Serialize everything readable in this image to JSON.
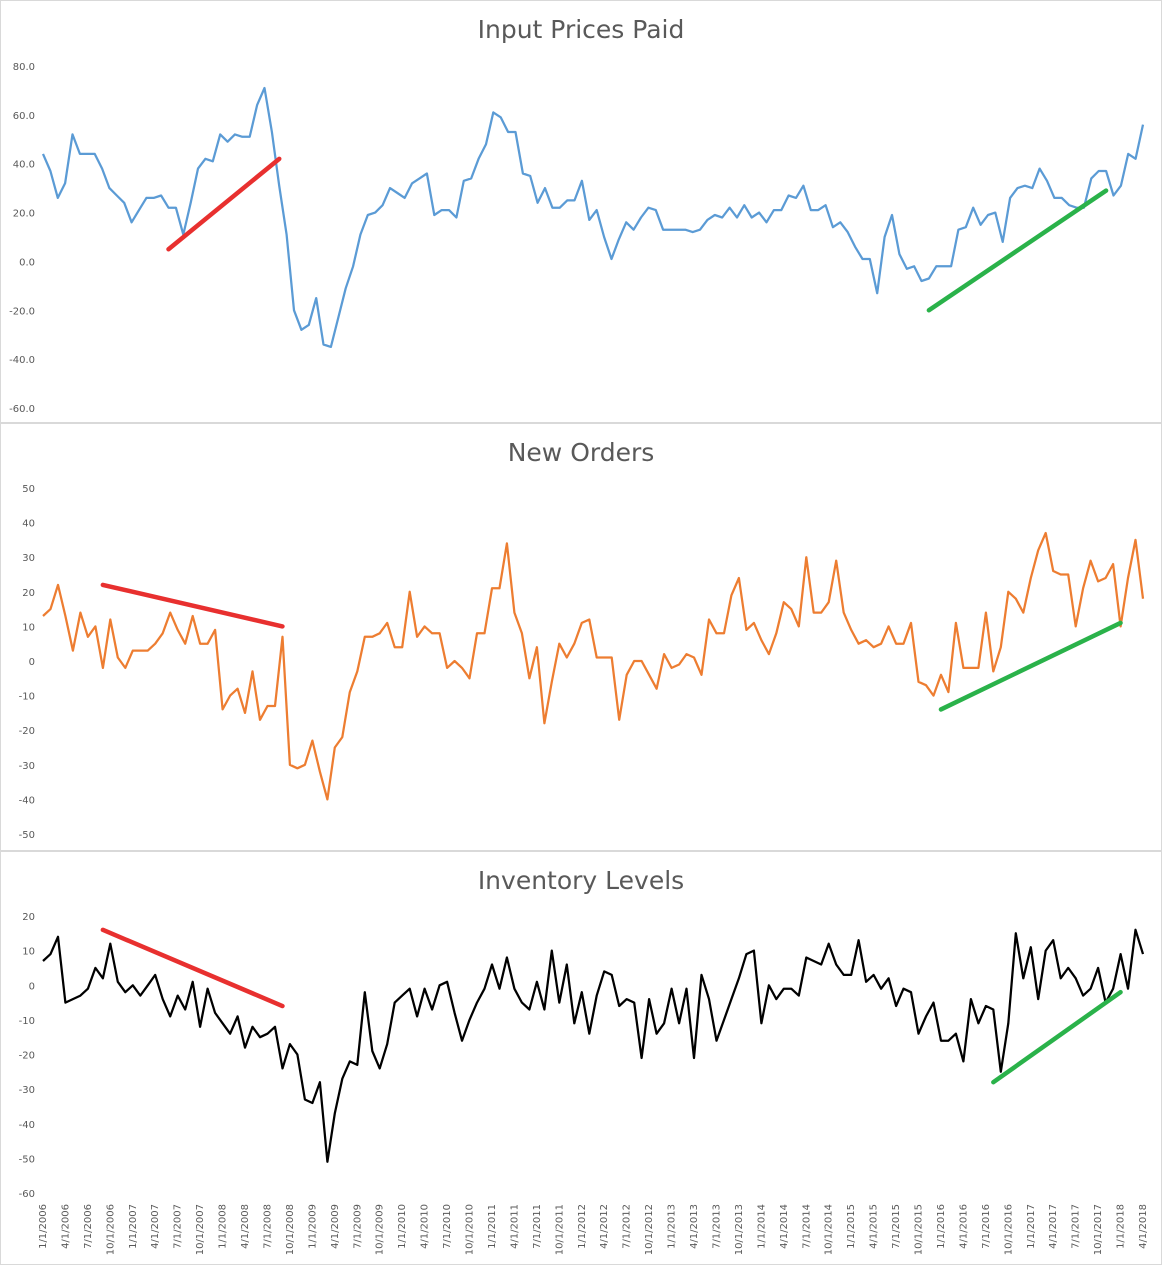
{
  "colors": {
    "series1": "#5b9bd5",
    "series2": "#ed7d31",
    "series3": "#000000",
    "trend_red": "#e8302f",
    "trend_green": "#2ab24a",
    "axis_text": "#595959"
  },
  "chart_data": [
    {
      "type": "line",
      "title": "Input Prices Paid",
      "ylim": [
        -60,
        80
      ],
      "yticks": [
        "80.0",
        "60.0",
        "40.0",
        "20.0",
        "0.0",
        "-20.0",
        "-40.0",
        "-60.0"
      ],
      "grid": false,
      "color": "#5b9bd5",
      "series": [
        {
          "values": [
            44,
            37,
            26,
            32,
            52,
            44,
            44,
            44,
            38,
            30,
            27,
            24,
            16,
            21,
            26,
            26,
            27,
            22,
            22,
            11,
            24,
            38,
            42,
            41,
            52,
            49,
            52,
            51,
            51,
            64,
            71,
            53,
            31,
            11,
            -20,
            -28,
            -26,
            -15,
            -34,
            -35,
            -23,
            -11,
            -2,
            11,
            19,
            20,
            23,
            30,
            28,
            26,
            32,
            34,
            36,
            19,
            21,
            21,
            18,
            33,
            34,
            42,
            48,
            61,
            59,
            53,
            53,
            36,
            35,
            24,
            30,
            22,
            22,
            25,
            25,
            33,
            17,
            21,
            10,
            1,
            9,
            16,
            13,
            18,
            22,
            21,
            13,
            13,
            13,
            13,
            12,
            13,
            17,
            19,
            18,
            22,
            18,
            23,
            18,
            20,
            16,
            21,
            21,
            27,
            26,
            31,
            21,
            21,
            23,
            14,
            16,
            12,
            6,
            1,
            1,
            -13,
            10,
            19,
            3,
            -3,
            -2,
            -8,
            -7,
            -2,
            -2,
            -2,
            13,
            14,
            22,
            15,
            19,
            20,
            8,
            26,
            30,
            31,
            30,
            38,
            33,
            26,
            26,
            23,
            22,
            22,
            34,
            37,
            37,
            27,
            31,
            44,
            42,
            56
          ]
        }
      ],
      "trend_lines": [
        {
          "color": "red",
          "from": [
            17,
            5
          ],
          "to": [
            32,
            42
          ]
        },
        {
          "color": "green",
          "from": [
            120,
            -20
          ],
          "to": [
            144,
            29
          ]
        }
      ]
    },
    {
      "type": "line",
      "title": "New Orders",
      "ylim": [
        -50,
        50
      ],
      "yticks": [
        "50",
        "40",
        "30",
        "20",
        "10",
        "0",
        "-10",
        "-20",
        "-30",
        "-40",
        "-50"
      ],
      "grid": false,
      "color": "#ed7d31",
      "series": [
        {
          "values": [
            13,
            15,
            22,
            13,
            3,
            14,
            7,
            10,
            -2,
            12,
            1,
            -2,
            3,
            3,
            3,
            5,
            8,
            14,
            9,
            5,
            13,
            5,
            5,
            9,
            -14,
            -10,
            -8,
            -15,
            -3,
            -17,
            -13,
            -13,
            7,
            -30,
            -31,
            -30,
            -23,
            -32,
            -40,
            -25,
            -22,
            -9,
            -3,
            7,
            7,
            8,
            11,
            4,
            4,
            20,
            7,
            10,
            8,
            8,
            -2,
            0,
            -2,
            -5,
            8,
            8,
            21,
            21,
            34,
            14,
            8,
            -5,
            4,
            -18,
            -6,
            5,
            1,
            5,
            11,
            12,
            1,
            1,
            1,
            -17,
            -4,
            0,
            0,
            -4,
            -8,
            2,
            -2,
            -1,
            2,
            1,
            -4,
            12,
            8,
            8,
            19,
            24,
            9,
            11,
            6,
            2,
            8,
            17,
            15,
            10,
            30,
            14,
            14,
            17,
            29,
            14,
            9,
            5,
            6,
            4,
            5,
            10,
            5,
            5,
            11,
            -6,
            -7,
            -10,
            -4,
            -9,
            11,
            -2,
            -2,
            -2,
            14,
            -3,
            4,
            20,
            18,
            14,
            24,
            32,
            37,
            26,
            25,
            25,
            10,
            21,
            29,
            23,
            24,
            28,
            10,
            24,
            35,
            18
          ]
        }
      ],
      "trend_lines": [
        {
          "color": "red",
          "from": [
            8,
            22
          ],
          "to": [
            32,
            10
          ]
        },
        {
          "color": "green",
          "from": [
            120,
            -14
          ],
          "to": [
            144,
            11
          ]
        }
      ]
    },
    {
      "type": "line",
      "title": "Inventory Levels",
      "ylim": [
        -60,
        20
      ],
      "yticks": [
        "20",
        "10",
        "0",
        "-10",
        "-20",
        "-30",
        "-40",
        "-50",
        "-60"
      ],
      "grid": false,
      "color": "#000000",
      "series": [
        {
          "values": [
            7,
            9,
            14,
            -5,
            -4,
            -3,
            -1,
            5,
            2,
            12,
            1,
            -2,
            0,
            -3,
            0,
            3,
            -4,
            -9,
            -3,
            -7,
            1,
            -12,
            -1,
            -8,
            -11,
            -14,
            -9,
            -18,
            -12,
            -15,
            -14,
            -12,
            -24,
            -17,
            -20,
            -33,
            -34,
            -28,
            -51,
            -37,
            -27,
            -22,
            -23,
            -2,
            -19,
            -24,
            -17,
            -5,
            -3,
            -1,
            -9,
            -1,
            -7,
            0,
            1,
            -8,
            -16,
            -10,
            -5,
            -1,
            6,
            -1,
            8,
            -1,
            -5,
            -7,
            1,
            -7,
            10,
            -5,
            6,
            -11,
            -2,
            -14,
            -3,
            4,
            3,
            -6,
            -4,
            -5,
            -21,
            -4,
            -14,
            -11,
            -1,
            -11,
            -1,
            -21,
            3,
            -4,
            -16,
            -10,
            -4,
            2,
            9,
            10,
            -11,
            0,
            -4,
            -1,
            -1,
            -3,
            8,
            7,
            6,
            12,
            6,
            3,
            3,
            13,
            1,
            3,
            -1,
            2,
            -6,
            -1,
            -2,
            -14,
            -9,
            -5,
            -16,
            -16,
            -14,
            -22,
            -4,
            -11,
            -6,
            -7,
            -25,
            -11,
            15,
            2,
            11,
            -4,
            10,
            13,
            2,
            5,
            2,
            -3,
            -1,
            5,
            -5,
            -1,
            9,
            -1,
            16,
            9
          ]
        }
      ],
      "trend_lines": [
        {
          "color": "red",
          "from": [
            8,
            16
          ],
          "to": [
            32,
            -6
          ]
        },
        {
          "color": "green",
          "from": [
            127,
            -28
          ],
          "to": [
            144,
            -2
          ]
        }
      ],
      "x_tick_labels": [
        "1/1/2006",
        "4/1/2006",
        "7/1/2006",
        "10/1/2006",
        "1/1/2007",
        "4/1/2007",
        "7/1/2007",
        "10/1/2007",
        "1/1/2008",
        "4/1/2008",
        "7/1/2008",
        "10/1/2008",
        "1/1/2009",
        "4/1/2009",
        "7/1/2009",
        "10/1/2009",
        "1/1/2010",
        "4/1/2010",
        "7/1/2010",
        "10/1/2010",
        "1/1/2011",
        "4/1/2011",
        "7/1/2011",
        "10/1/2011",
        "1/1/2012",
        "4/1/2012",
        "7/1/2012",
        "10/1/2012",
        "1/1/2013",
        "4/1/2013",
        "7/1/2013",
        "10/1/2013",
        "1/1/2014",
        "4/1/2014",
        "7/1/2014",
        "10/1/2014",
        "1/1/2015",
        "4/1/2015",
        "7/1/2015",
        "10/1/2015",
        "1/1/2016",
        "4/1/2016",
        "7/1/2016",
        "10/1/2016",
        "1/1/2017",
        "4/1/2017",
        "7/1/2017",
        "10/1/2017",
        "1/1/2018",
        "4/1/2018"
      ]
    }
  ]
}
